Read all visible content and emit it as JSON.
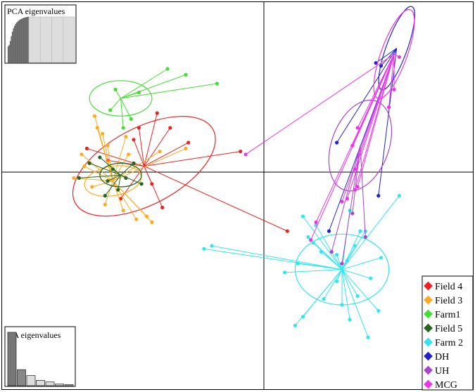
{
  "chart_data": {
    "type": "scatter",
    "title": "",
    "xlabel": "",
    "ylabel": "",
    "xlim": [
      -10,
      8
    ],
    "ylim": [
      -8,
      5
    ],
    "axes_cross": [
      0,
      0
    ],
    "grid": false,
    "legend_position": "bottom-right",
    "legend": [
      "Field 4",
      "Field 3",
      "Farm1",
      "Field 5",
      "Farm 2",
      "DH",
      "UH",
      "MCG"
    ],
    "series": [
      {
        "name": "Field 4",
        "color": "#ee2222",
        "centroid": [
          -4.6,
          0.2
        ],
        "ellipse": {
          "rx": 3.0,
          "ry": 1.3,
          "angle": -28
        },
        "points": [
          [
            -6.8,
            0.8
          ],
          [
            -3.6,
            1.5
          ],
          [
            -4.8,
            1.5
          ],
          [
            -4.1,
            2.0
          ],
          [
            -5.0,
            1.1
          ],
          [
            -4.3,
            -0.4
          ],
          [
            -3.9,
            -1.2
          ],
          [
            -2.9,
            1.0
          ],
          [
            -0.9,
            0.7
          ],
          [
            0.9,
            -2.0
          ],
          [
            -5.5,
            -0.9
          ],
          [
            -6.0,
            0.4
          ]
        ]
      },
      {
        "name": "Field 3",
        "color": "#ffaa22",
        "centroid": [
          -5.8,
          -0.3
        ],
        "ellipse": {
          "rx": 1.1,
          "ry": 0.5,
          "angle": -10
        },
        "points": [
          [
            -6.9,
            0.2
          ],
          [
            -7.3,
            -0.2
          ],
          [
            -6.6,
            -0.5
          ],
          [
            -5.3,
            1.2
          ],
          [
            -6.2,
            1.3
          ],
          [
            -4.9,
            -1.6
          ],
          [
            -4.3,
            -1.7
          ],
          [
            -4.5,
            -1.5
          ],
          [
            -6.1,
            -1.1
          ],
          [
            -6.4,
            1.5
          ],
          [
            -3.0,
            0.8
          ],
          [
            -6.5,
            1.9
          ],
          [
            -6.0,
            0.9
          ],
          [
            -5.4,
            -1.3
          ],
          [
            -7.0,
            0.6
          ],
          [
            -4.0,
            0.7
          ],
          [
            -5.2,
            0.6
          ]
        ]
      },
      {
        "name": "Farm1",
        "color": "#44dd33",
        "centroid": [
          -5.5,
          2.5
        ],
        "ellipse": {
          "rx": 1.2,
          "ry": 0.6,
          "angle": 0
        },
        "points": [
          [
            -3.7,
            3.5
          ],
          [
            -3.0,
            3.3
          ],
          [
            -1.8,
            3.0
          ],
          [
            -4.8,
            2.7
          ],
          [
            -5.1,
            1.8
          ],
          [
            -5.9,
            2.1
          ],
          [
            -5.7,
            2.8
          ],
          [
            -5.4,
            1.5
          ]
        ]
      },
      {
        "name": "Field 5",
        "color": "#226622",
        "centroid": [
          -5.5,
          -0.1
        ],
        "ellipse": {
          "rx": 0.8,
          "ry": 0.4,
          "angle": 0
        },
        "points": [
          [
            -7.1,
            -0.2
          ],
          [
            -6.7,
            0.3
          ],
          [
            -6.3,
            0.5
          ],
          [
            -6.0,
            -0.3
          ],
          [
            -5.8,
            0.1
          ],
          [
            -5.3,
            -0.2
          ],
          [
            -5.0,
            0.3
          ],
          [
            -4.7,
            -0.4
          ],
          [
            -5.6,
            -0.6
          ],
          [
            -6.1,
            -0.8
          ]
        ]
      },
      {
        "name": "Farm 2",
        "color": "#33e6ee",
        "centroid": [
          3.0,
          -3.3
        ],
        "ellipse": {
          "rx": 1.8,
          "ry": 1.2,
          "angle": 0
        },
        "points": [
          [
            -2.0,
            -2.5
          ],
          [
            -2.3,
            -2.6
          ],
          [
            0.8,
            -3.4
          ],
          [
            1.3,
            -3.1
          ],
          [
            2.8,
            -2.8
          ],
          [
            3.5,
            -2.5
          ],
          [
            4.5,
            -2.9
          ],
          [
            4.1,
            -3.6
          ],
          [
            4.4,
            -4.7
          ],
          [
            4.0,
            -5.6
          ],
          [
            3.3,
            -5.0
          ],
          [
            3.0,
            -4.5
          ],
          [
            1.2,
            -5.2
          ],
          [
            1.5,
            -4.9
          ],
          [
            2.3,
            -4.3
          ],
          [
            2.2,
            -2.7
          ],
          [
            1.7,
            -2.2
          ],
          [
            1.5,
            -1.5
          ],
          [
            2.0,
            -1.8
          ],
          [
            3.7,
            -2.0
          ],
          [
            5.2,
            -0.8
          ],
          [
            3.3,
            -1.3
          ],
          [
            1.9,
            -2.4
          ],
          [
            2.8,
            -3.7
          ],
          [
            3.6,
            -4.2
          ],
          [
            3.9,
            -2.0
          ],
          [
            3.2,
            -3.0
          ]
        ]
      },
      {
        "name": "DH",
        "color": "#2222cc",
        "centroid": [
          5.1,
          4.2
        ],
        "ellipse": {
          "rx": 0.4,
          "ry": 1.5,
          "angle": 20
        },
        "points": [
          [
            4.3,
            3.7
          ],
          [
            4.5,
            3.6
          ],
          [
            2.8,
            1.0
          ],
          [
            2.5,
            -2.0
          ],
          [
            4.4,
            -0.8
          ]
        ]
      },
      {
        "name": "UH",
        "color": "#aa44cc",
        "centroid": [
          3.7,
          0.9
        ],
        "ellipse": {
          "rx": 1.1,
          "ry": 1.6,
          "angle": 20
        },
        "points": [
          [
            3.4,
            -1.4
          ],
          [
            3.9,
            -2.2
          ],
          [
            2.6,
            -2.7
          ],
          [
            3.0,
            -3.1
          ]
        ]
      },
      {
        "name": "MCG",
        "color": "#ee33ee",
        "centroid": [
          5.0,
          4.0
        ],
        "ellipse": {
          "rx": 0.5,
          "ry": 1.6,
          "angle": 20
        },
        "points": [
          [
            5.2,
            3.9
          ],
          [
            5.0,
            2.8
          ],
          [
            4.8,
            2.2
          ],
          [
            3.6,
            1.5
          ],
          [
            3.4,
            0.9
          ],
          [
            3.5,
            0.1
          ],
          [
            3.5,
            -0.6
          ],
          [
            3.2,
            -0.9
          ],
          [
            2.0,
            -1.7
          ],
          [
            1.8,
            -2.3
          ],
          [
            -0.7,
            0.6
          ],
          [
            3.6,
            -0.5
          ],
          [
            3.0,
            -1.0
          ]
        ]
      }
    ]
  },
  "insets": {
    "pca": {
      "label": "PCA eigenvalues",
      "retained": [
        3.3,
        3.6,
        4.4,
        5.4,
        6.3,
        7.0,
        7.5,
        7.9,
        8.2,
        8.4,
        8.6,
        8.8,
        8.9,
        9.0,
        9.1,
        9.2,
        9.25,
        9.3,
        9.35,
        9.4
      ],
      "other_bars": 4
    },
    "da": {
      "label": "DA eigenvalues",
      "values": [
        10,
        3.0,
        1.9,
        1.0,
        0.7,
        0.3,
        0.2
      ]
    }
  }
}
